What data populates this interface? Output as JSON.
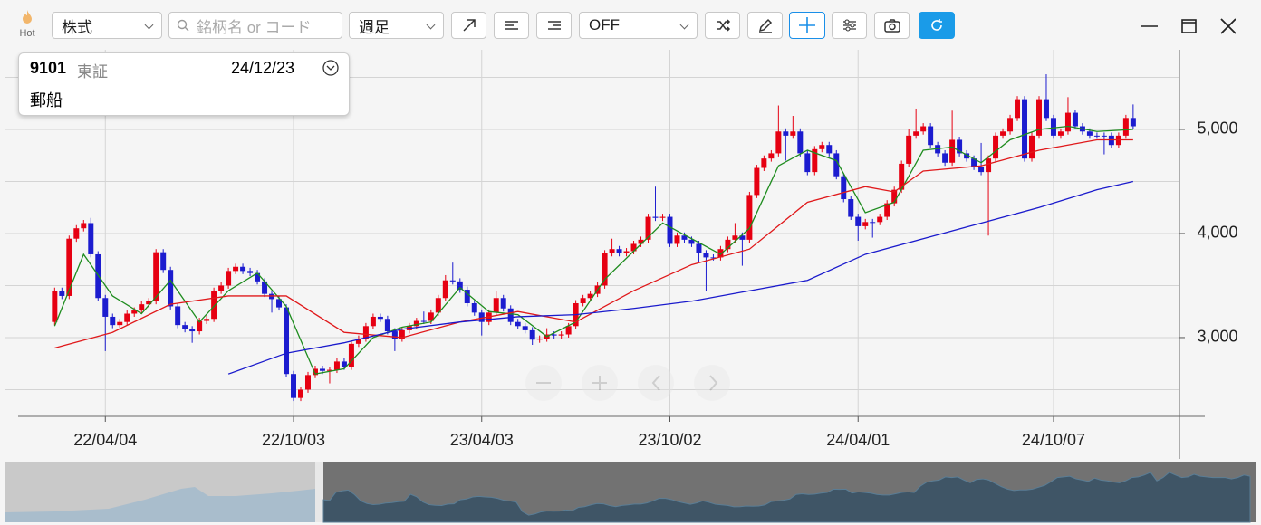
{
  "toolbar": {
    "hot": "Hot",
    "market_type": "株式",
    "search_placeholder": "銘柄名 or コード",
    "period": "週足",
    "indicator": "OFF"
  },
  "info": {
    "code": "9101",
    "exchange": "東証",
    "date": "24/12/23",
    "name": "郵船"
  },
  "chart_data": {
    "type": "candlestick",
    "up_color": "#e60012",
    "down_color": "#1c1ccf",
    "xlim": [
      -6.8,
      155.4
    ],
    "ylim": [
      2243,
      5765
    ],
    "xticks": [
      {
        "value": 7,
        "label": "22/04/04"
      },
      {
        "value": 33,
        "label": "22/10/03"
      },
      {
        "value": 59,
        "label": "23/04/03"
      },
      {
        "value": 85,
        "label": "23/10/02"
      },
      {
        "value": 111,
        "label": "24/04/01"
      },
      {
        "value": 138,
        "label": "24/10/07"
      }
    ],
    "yticks": [
      {
        "value": 3000,
        "label": "3,000"
      },
      {
        "value": 4000,
        "label": "4,000"
      },
      {
        "value": 5000,
        "label": "5,000"
      }
    ],
    "ygrid": [
      2500,
      3500,
      4500,
      5500
    ],
    "grid": true,
    "ohlc": [
      [
        3150,
        3480,
        3120,
        3450
      ],
      [
        3450,
        3480,
        3370,
        3400
      ],
      [
        3400,
        3980,
        3370,
        3950
      ],
      [
        3950,
        4080,
        3920,
        4050
      ],
      [
        4050,
        4130,
        4020,
        4100
      ],
      [
        4100,
        4150,
        3770,
        3800
      ],
      [
        3800,
        3830,
        3350,
        3380
      ],
      [
        3380,
        3410,
        2870,
        3200
      ],
      [
        3200,
        3230,
        3090,
        3120
      ],
      [
        3120,
        3180,
        3090,
        3150
      ],
      [
        3150,
        3260,
        3120,
        3230
      ],
      [
        3230,
        3290,
        3200,
        3260
      ],
      [
        3260,
        3350,
        3230,
        3320
      ],
      [
        3320,
        3380,
        3290,
        3350
      ],
      [
        3350,
        3850,
        3320,
        3820
      ],
      [
        3820,
        3850,
        3620,
        3650
      ],
      [
        3650,
        3680,
        3270,
        3300
      ],
      [
        3300,
        3330,
        3090,
        3120
      ],
      [
        3120,
        3150,
        3050,
        3080
      ],
      [
        3080,
        3110,
        2950,
        3060
      ],
      [
        3060,
        3190,
        3030,
        3160
      ],
      [
        3160,
        3210,
        3130,
        3180
      ],
      [
        3180,
        3480,
        3150,
        3450
      ],
      [
        3450,
        3530,
        3420,
        3500
      ],
      [
        3500,
        3670,
        3470,
        3640
      ],
      [
        3640,
        3710,
        3610,
        3680
      ],
      [
        3680,
        3710,
        3610,
        3640
      ],
      [
        3640,
        3670,
        3590,
        3620
      ],
      [
        3620,
        3650,
        3510,
        3540
      ],
      [
        3540,
        3570,
        3390,
        3420
      ],
      [
        3420,
        3450,
        3240,
        3370
      ],
      [
        3370,
        3400,
        3260,
        3290
      ],
      [
        3290,
        3320,
        2620,
        2650
      ],
      [
        2650,
        2680,
        2390,
        2420
      ],
      [
        2420,
        2530,
        2390,
        2500
      ],
      [
        2500,
        2670,
        2470,
        2640
      ],
      [
        2640,
        2730,
        2610,
        2700
      ],
      [
        2700,
        2730,
        2650,
        2680
      ],
      [
        2680,
        2720,
        2560,
        2690
      ],
      [
        2690,
        2800,
        2660,
        2770
      ],
      [
        2770,
        2800,
        2690,
        2720
      ],
      [
        2720,
        2970,
        2690,
        2940
      ],
      [
        2940,
        3020,
        2910,
        2990
      ],
      [
        2990,
        3140,
        2960,
        3110
      ],
      [
        3110,
        3230,
        3080,
        3200
      ],
      [
        3200,
        3230,
        3150,
        3180
      ],
      [
        3180,
        3210,
        3030,
        3060
      ],
      [
        3060,
        3090,
        2870,
        2990
      ],
      [
        2990,
        3100,
        2960,
        3070
      ],
      [
        3070,
        3140,
        3040,
        3110
      ],
      [
        3110,
        3190,
        3080,
        3160
      ],
      [
        3160,
        3250,
        3130,
        3160
      ],
      [
        3160,
        3270,
        3130,
        3240
      ],
      [
        3240,
        3410,
        3210,
        3380
      ],
      [
        3380,
        3600,
        3350,
        3550
      ],
      [
        3550,
        3720,
        3510,
        3540
      ],
      [
        3540,
        3570,
        3430,
        3460
      ],
      [
        3460,
        3490,
        3300,
        3330
      ],
      [
        3330,
        3360,
        3210,
        3240
      ],
      [
        3240,
        3270,
        3020,
        3150
      ],
      [
        3150,
        3270,
        3120,
        3240
      ],
      [
        3240,
        3450,
        3210,
        3380
      ],
      [
        3380,
        3410,
        3250,
        3280
      ],
      [
        3280,
        3310,
        3120,
        3150
      ],
      [
        3150,
        3180,
        3080,
        3110
      ],
      [
        3110,
        3140,
        3040,
        3070
      ],
      [
        3070,
        3100,
        2930,
        2980
      ],
      [
        2980,
        3020,
        2950,
        2990
      ],
      [
        2990,
        3090,
        2960,
        3030
      ],
      [
        3030,
        3060,
        2990,
        3020
      ],
      [
        3020,
        3060,
        2990,
        3030
      ],
      [
        3030,
        3140,
        3000,
        3110
      ],
      [
        3110,
        3360,
        3080,
        3330
      ],
      [
        3330,
        3410,
        3300,
        3380
      ],
      [
        3380,
        3450,
        3350,
        3420
      ],
      [
        3420,
        3530,
        3390,
        3500
      ],
      [
        3500,
        3840,
        3470,
        3810
      ],
      [
        3810,
        3950,
        3780,
        3850
      ],
      [
        3850,
        3880,
        3780,
        3810
      ],
      [
        3810,
        3860,
        3780,
        3830
      ],
      [
        3830,
        3930,
        3800,
        3900
      ],
      [
        3900,
        3970,
        3870,
        3940
      ],
      [
        3940,
        4190,
        3910,
        4160
      ],
      [
        4160,
        4450,
        4120,
        4150
      ],
      [
        4150,
        4190,
        4120,
        4160
      ],
      [
        4160,
        4190,
        3870,
        3900
      ],
      [
        3900,
        4010,
        3870,
        3980
      ],
      [
        3980,
        4010,
        3910,
        3940
      ],
      [
        3940,
        3970,
        3870,
        3900
      ],
      [
        3900,
        3930,
        3730,
        3810
      ],
      [
        3810,
        3840,
        3450,
        3770
      ],
      [
        3770,
        3800,
        3740,
        3770
      ],
      [
        3770,
        3880,
        3740,
        3850
      ],
      [
        3850,
        3970,
        3820,
        3940
      ],
      [
        3940,
        4100,
        3910,
        3980
      ],
      [
        3980,
        4010,
        3690,
        3940
      ],
      [
        3940,
        4400,
        3910,
        4370
      ],
      [
        4370,
        4660,
        4340,
        4630
      ],
      [
        4630,
        4750,
        4600,
        4720
      ],
      [
        4720,
        4800,
        4690,
        4770
      ],
      [
        4770,
        5230,
        4740,
        4980
      ],
      [
        4980,
        5010,
        4700,
        4940
      ],
      [
        4940,
        5130,
        4910,
        4980
      ],
      [
        4980,
        5010,
        4740,
        4770
      ],
      [
        4770,
        4800,
        4560,
        4590
      ],
      [
        4590,
        4840,
        4560,
        4810
      ],
      [
        4810,
        4880,
        4780,
        4850
      ],
      [
        4850,
        4880,
        4740,
        4770
      ],
      [
        4770,
        4800,
        4520,
        4550
      ],
      [
        4550,
        4580,
        4300,
        4330
      ],
      [
        4330,
        4360,
        4130,
        4160
      ],
      [
        4160,
        4190,
        3930,
        4070
      ],
      [
        4070,
        4140,
        4040,
        4110
      ],
      [
        4110,
        4140,
        3960,
        4110
      ],
      [
        4110,
        4190,
        4080,
        4160
      ],
      [
        4160,
        4320,
        4130,
        4290
      ],
      [
        4290,
        4450,
        4260,
        4420
      ],
      [
        4420,
        4700,
        4390,
        4670
      ],
      [
        4670,
        5000,
        4640,
        4940
      ],
      [
        4940,
        5200,
        4910,
        4980
      ],
      [
        4980,
        5060,
        4950,
        5030
      ],
      [
        5030,
        5060,
        4820,
        4850
      ],
      [
        4850,
        4880,
        4740,
        4770
      ],
      [
        4770,
        4800,
        4650,
        4680
      ],
      [
        4680,
        5180,
        4650,
        4900
      ],
      [
        4900,
        4930,
        4740,
        4770
      ],
      [
        4770,
        4800,
        4690,
        4720
      ],
      [
        4720,
        4750,
        4610,
        4640
      ],
      [
        4640,
        4870,
        4560,
        4590
      ],
      [
        4590,
        4750,
        3980,
        4720
      ],
      [
        4720,
        4970,
        4690,
        4940
      ],
      [
        4940,
        5010,
        4910,
        4980
      ],
      [
        4980,
        5140,
        4950,
        5110
      ],
      [
        5110,
        5320,
        5080,
        5290
      ],
      [
        5290,
        5320,
        4690,
        4720
      ],
      [
        4720,
        4970,
        4690,
        4940
      ],
      [
        4940,
        5320,
        4910,
        5290
      ],
      [
        5290,
        5530,
        5080,
        5110
      ],
      [
        5110,
        5140,
        4910,
        4940
      ],
      [
        4940,
        5010,
        4910,
        4980
      ],
      [
        4980,
        5310,
        4950,
        5160
      ],
      [
        5160,
        5190,
        5000,
        5030
      ],
      [
        5030,
        5060,
        4950,
        4980
      ],
      [
        4980,
        5010,
        4910,
        4940
      ],
      [
        4940,
        4970,
        4910,
        4940
      ],
      [
        4940,
        4970,
        4760,
        4940
      ],
      [
        4940,
        4970,
        4820,
        4850
      ],
      [
        4850,
        4970,
        4820,
        4940
      ],
      [
        4940,
        5140,
        4910,
        5110
      ],
      [
        5110,
        5240,
        5000,
        5030
      ]
    ],
    "lines": [
      {
        "color": "#1e8c1e",
        "x": [
          0,
          4,
          8,
          12,
          16,
          20,
          24,
          28,
          32,
          36,
          40,
          44,
          48,
          52,
          56,
          60,
          64,
          68,
          72,
          76,
          80,
          84,
          88,
          92,
          96,
          100,
          104,
          108,
          112,
          116,
          120,
          124,
          128,
          132,
          136,
          140,
          144,
          149
        ],
        "values": [
          3110,
          3800,
          3400,
          3230,
          3550,
          3150,
          3450,
          3620,
          3300,
          2650,
          2700,
          3000,
          3100,
          3150,
          3480,
          3250,
          3220,
          3010,
          3150,
          3560,
          3830,
          4100,
          3950,
          3800,
          4050,
          4650,
          4800,
          4700,
          4200,
          4300,
          4800,
          4830,
          4680,
          4900,
          5000,
          5030,
          4980,
          5000
        ]
      },
      {
        "color": "#e0191b",
        "x": [
          0,
          8,
          16,
          24,
          32,
          40,
          48,
          56,
          64,
          72,
          80,
          88,
          96,
          104,
          112,
          116,
          120,
          128,
          136,
          144,
          149
        ],
        "values": [
          2900,
          3050,
          3320,
          3400,
          3400,
          3050,
          3000,
          3150,
          3250,
          3150,
          3450,
          3700,
          3850,
          4300,
          4450,
          4400,
          4600,
          4650,
          4800,
          4900,
          4900
        ]
      },
      {
        "color": "#1a1acc",
        "x": [
          24,
          32,
          40,
          48,
          56,
          64,
          72,
          80,
          88,
          96,
          104,
          112,
          120,
          128,
          136,
          144,
          149
        ],
        "values": [
          2650,
          2850,
          2950,
          3080,
          3150,
          3200,
          3220,
          3280,
          3350,
          3450,
          3550,
          3800,
          3950,
          4100,
          4250,
          4420,
          4500
        ]
      }
    ]
  }
}
